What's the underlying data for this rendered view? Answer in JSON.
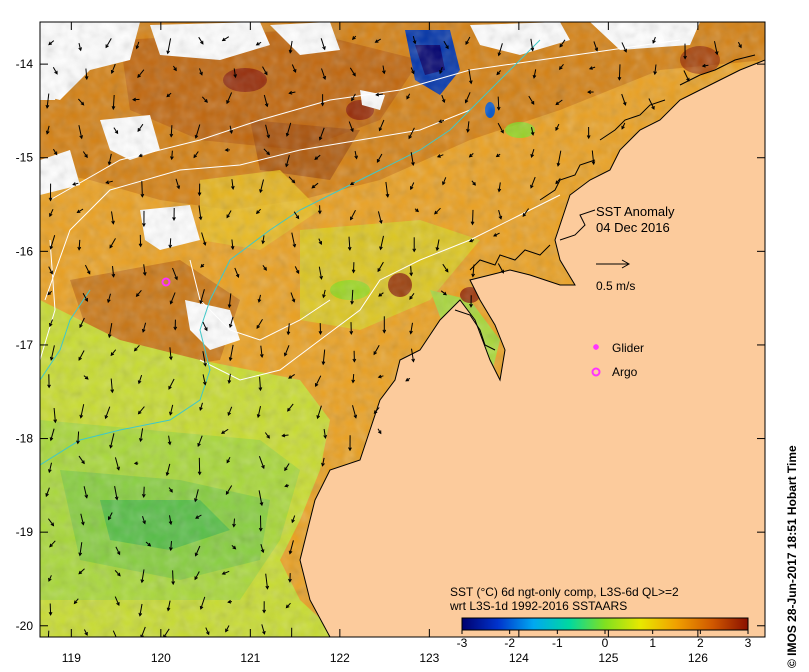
{
  "map": {
    "title": "SST Anomaly",
    "date": "04 Dec 2016",
    "vector_scale_label": "0.5 m/s",
    "legend": [
      {
        "label": "Glider",
        "color": "#ff33ff"
      },
      {
        "label": "Argo",
        "color": "#ff33ff"
      }
    ],
    "colorbar_caption_1": "SST (°C) 6d ngt-only comp, L3S-6d QL>=2",
    "colorbar_caption_2": "wrt L3S-1d 1992-2016 SSTAARS",
    "colorbar_ticks": [
      "-3",
      "-2",
      "-1",
      "0",
      "1",
      "2",
      "3"
    ],
    "colorbar_colors": [
      "#00006e",
      "#0033cc",
      "#00a8f0",
      "#00d8a0",
      "#80e020",
      "#e8e800",
      "#f0a000",
      "#d05800",
      "#8a1000"
    ],
    "credit": "© IMOS 28-Jun-2017 18:51 Hobart Time",
    "lon_ticks": [
      "119",
      "120",
      "121",
      "122",
      "123",
      "124",
      "125",
      "126"
    ],
    "lat_ticks": [
      "-14",
      "-15",
      "-16",
      "-17",
      "-18",
      "-19",
      "-20"
    ],
    "lon_range": [
      118.65,
      126.75
    ],
    "lat_range": [
      -20.12,
      -13.55
    ],
    "land_color": "#fccb9c",
    "sea_base_color": "#eaa020"
  }
}
